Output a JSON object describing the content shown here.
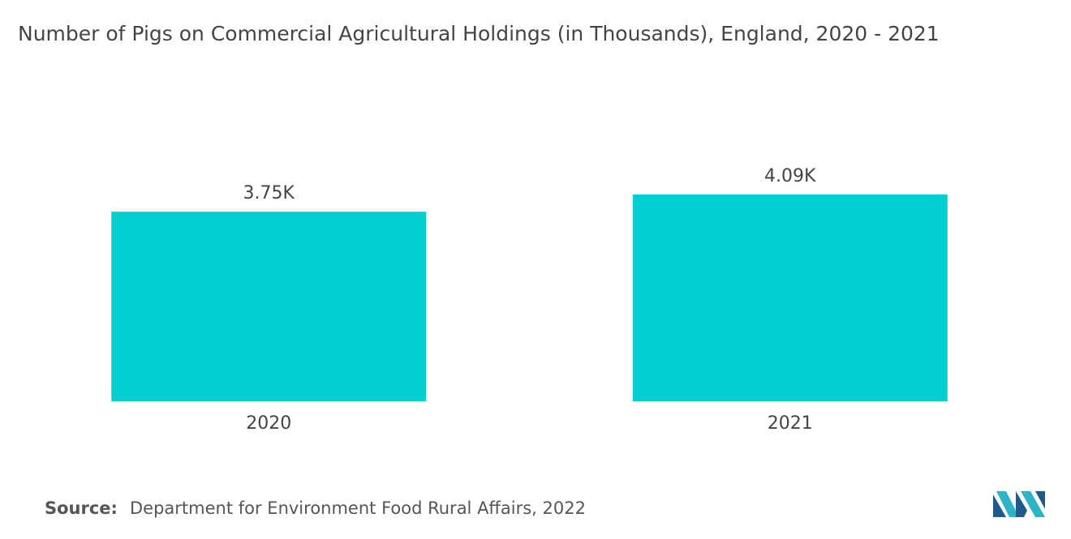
{
  "chart_data": {
    "type": "bar",
    "title": "Number of Pigs on Commercial Agricultural Holdings (in Thousands), England, 2020 - 2021",
    "categories": [
      "2020",
      "2021"
    ],
    "values": [
      3750,
      4090
    ],
    "value_labels": [
      "3.75K",
      "4.09K"
    ],
    "color": "#00ced1"
  },
  "footer": {
    "label": "Source:",
    "text": "Department for Environment Food Rural Affairs, 2022"
  }
}
